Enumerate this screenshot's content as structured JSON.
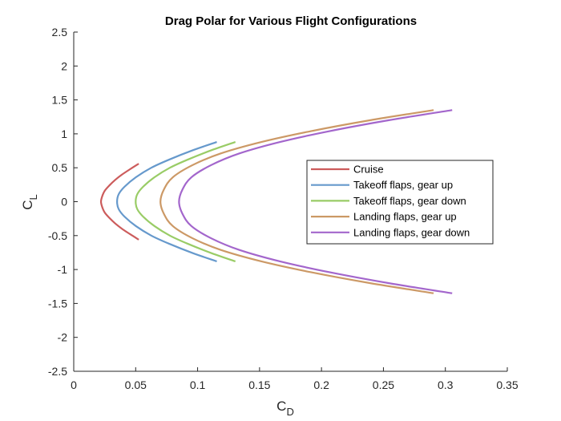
{
  "chart_data": {
    "type": "line",
    "title": "Drag Polar for Various Flight Configurations",
    "xlabel": {
      "main": "C",
      "sub": "D"
    },
    "ylabel": {
      "main": "C",
      "sub": "L"
    },
    "xlim": [
      0,
      0.35
    ],
    "ylim": [
      -2.5,
      2.5
    ],
    "xticks": [
      0,
      0.05,
      0.1,
      0.15,
      0.2,
      0.25,
      0.3,
      0.35
    ],
    "xtick_labels": [
      "0",
      "0.05",
      "0.1",
      "0.15",
      "0.2",
      "0.25",
      "0.3",
      "0.35"
    ],
    "yticks": [
      -2.5,
      -2,
      -1.5,
      -1,
      -0.5,
      0,
      0.5,
      1,
      1.5,
      2,
      2.5
    ],
    "ytick_labels": [
      "-2.5",
      "-2",
      "-1.5",
      "-1",
      "-0.5",
      "0",
      "0.5",
      "1",
      "1.5",
      "2",
      "2.5"
    ],
    "grid": false,
    "legend_position": "right-center",
    "series": [
      {
        "name": "Cruise",
        "color": "#cc5c5c",
        "x": [
          0.0525,
          0.0456,
          0.039,
          0.0334,
          0.0288,
          0.025,
          0.023,
          0.022,
          0.023,
          0.025,
          0.0288,
          0.0334,
          0.039,
          0.0456,
          0.0525
        ],
        "y": [
          -0.56,
          -0.48,
          -0.4,
          -0.32,
          -0.24,
          -0.16,
          -0.08,
          0,
          0.08,
          0.16,
          0.24,
          0.32,
          0.4,
          0.48,
          0.56
        ]
      },
      {
        "name": "Takeoff flaps, gear up",
        "color": "#6699cc",
        "x": [
          0.1155,
          0.0964,
          0.077,
          0.0626,
          0.0502,
          0.041,
          0.0363,
          0.035,
          0.0363,
          0.041,
          0.0502,
          0.0626,
          0.077,
          0.0964,
          0.1155
        ],
        "y": [
          -0.88,
          -0.76,
          -0.62,
          -0.5,
          -0.36,
          -0.22,
          -0.11,
          0,
          0.11,
          0.22,
          0.36,
          0.5,
          0.62,
          0.76,
          0.88
        ]
      },
      {
        "name": "Takeoff flaps, gear down",
        "color": "#99cc66",
        "x": [
          0.1305,
          0.1114,
          0.092,
          0.0776,
          0.0652,
          0.056,
          0.0513,
          0.05,
          0.0513,
          0.056,
          0.0652,
          0.0776,
          0.092,
          0.1114,
          0.1305
        ],
        "y": [
          -0.88,
          -0.76,
          -0.62,
          -0.5,
          -0.36,
          -0.22,
          -0.11,
          0,
          0.11,
          0.22,
          0.36,
          0.5,
          0.62,
          0.76,
          0.88
        ]
      },
      {
        "name": "Landing flaps, gear up",
        "color": "#cc9966",
        "x": [
          0.2905,
          0.239,
          0.1915,
          0.1515,
          0.1185,
          0.096,
          0.08,
          0.0728,
          0.07,
          0.0728,
          0.08,
          0.096,
          0.1185,
          0.1515,
          0.1915,
          0.239,
          0.2905
        ],
        "y": [
          -1.35,
          -1.2,
          -1.04,
          -0.88,
          -0.71,
          -0.54,
          -0.36,
          -0.18,
          0,
          0.18,
          0.36,
          0.54,
          0.71,
          0.88,
          1.04,
          1.2,
          1.35
        ]
      },
      {
        "name": "Landing flaps, gear down",
        "color": "#a366cc",
        "x": [
          0.3055,
          0.254,
          0.2065,
          0.1665,
          0.1335,
          0.111,
          0.095,
          0.0878,
          0.085,
          0.0878,
          0.095,
          0.111,
          0.1335,
          0.1665,
          0.2065,
          0.254,
          0.3055
        ],
        "y": [
          -1.35,
          -1.2,
          -1.04,
          -0.88,
          -0.71,
          -0.54,
          -0.36,
          -0.18,
          0,
          0.18,
          0.36,
          0.54,
          0.71,
          0.88,
          1.04,
          1.2,
          1.35
        ]
      }
    ]
  }
}
